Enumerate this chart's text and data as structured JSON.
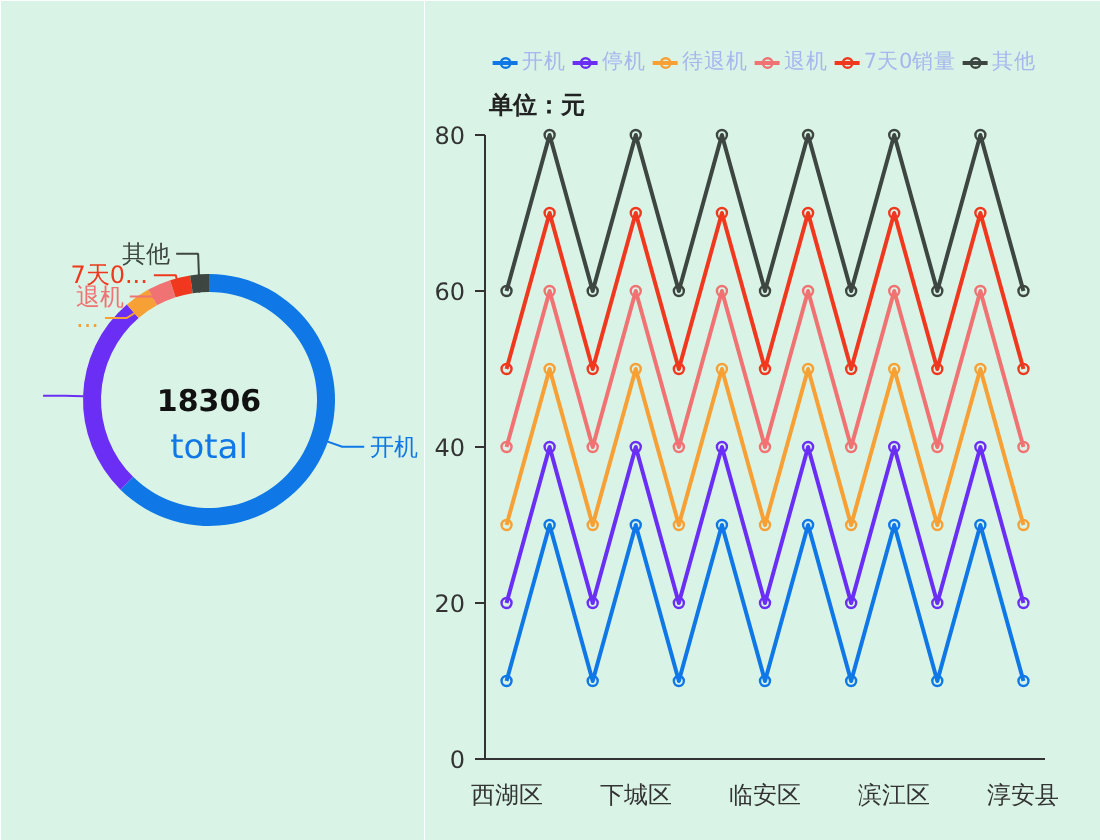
{
  "chart_data": [
    {
      "type": "donut",
      "title": "18306",
      "subtitle": "total",
      "categories": [
        "开机",
        null,
        "...",
        "退机",
        "7天0...",
        "其他"
      ],
      "values": [
        62.4,
        26.3,
        3.3,
        3.0,
        2.6,
        2.4
      ],
      "colors": [
        "#0f78e6",
        "#6a2ef4",
        "#f6a035",
        "#f07272",
        "#f0381f",
        "#3d4641"
      ]
    },
    {
      "type": "line",
      "ylabel": "单位：元",
      "categories": [
        "西湖区",
        null,
        null,
        "下城区",
        null,
        null,
        "临安区",
        null,
        null,
        "滨江区",
        null,
        null,
        "淳安县"
      ],
      "ylim": [
        0,
        80
      ],
      "yticks": [
        0,
        20,
        40,
        60,
        80
      ],
      "marker": "circle",
      "legend": "top",
      "series": [
        {
          "name": "开机",
          "color": "#0f78e6",
          "values": [
            10,
            30,
            10,
            30,
            10,
            30,
            10,
            30,
            10,
            30,
            10,
            30,
            10
          ]
        },
        {
          "name": "停机",
          "color": "#6a2ef4",
          "values": [
            20,
            40,
            20,
            40,
            20,
            40,
            20,
            40,
            20,
            40,
            20,
            40,
            20
          ]
        },
        {
          "name": "待退机",
          "color": "#f6a035",
          "values": [
            30,
            50,
            30,
            50,
            30,
            50,
            30,
            50,
            30,
            50,
            30,
            50,
            30
          ]
        },
        {
          "name": "退机",
          "color": "#f07272",
          "values": [
            40,
            60,
            40,
            60,
            40,
            60,
            40,
            60,
            40,
            60,
            40,
            60,
            40
          ]
        },
        {
          "name": "7天0销量",
          "color": "#f0381f",
          "values": [
            50,
            70,
            50,
            70,
            50,
            70,
            50,
            70,
            50,
            70,
            50,
            70,
            50
          ]
        },
        {
          "name": "其他",
          "color": "#3d4641",
          "values": [
            60,
            80,
            60,
            80,
            60,
            80,
            60,
            80,
            60,
            80,
            60,
            80,
            60
          ]
        }
      ]
    }
  ]
}
